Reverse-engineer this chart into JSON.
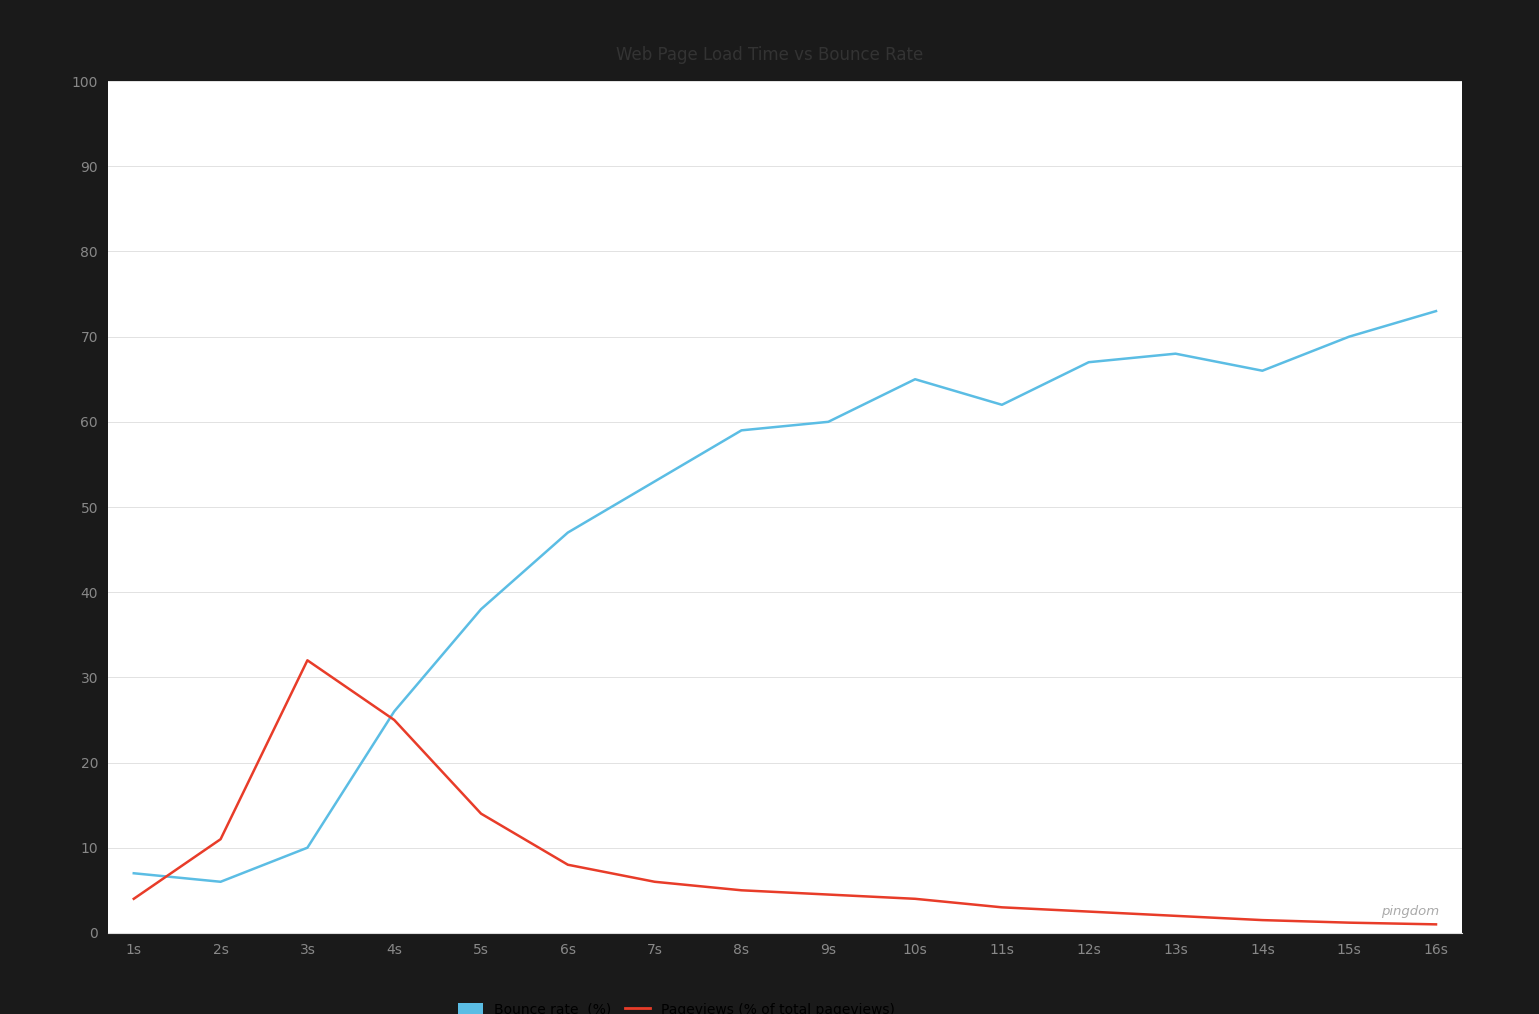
{
  "title": "Web Page Load Time vs Bounce Rate",
  "x_labels": [
    "1s",
    "2s",
    "3s",
    "4s",
    "5s",
    "6s",
    "7s",
    "8s",
    "9s",
    "10s",
    "11s",
    "12s",
    "13s",
    "14s",
    "15s",
    "16s"
  ],
  "x_values": [
    1,
    2,
    3,
    4,
    5,
    6,
    7,
    8,
    9,
    10,
    11,
    12,
    13,
    14,
    15,
    16
  ],
  "bounce_rate": [
    7,
    6,
    10,
    26,
    38,
    47,
    53,
    59,
    60,
    65,
    62,
    67,
    68,
    66,
    70,
    73
  ],
  "pageviews": [
    4,
    11,
    32,
    25,
    14,
    8,
    6,
    5,
    4.5,
    4,
    3,
    2.5,
    2,
    1.5,
    1.2,
    1
  ],
  "bounce_color": "#5BBDE4",
  "pageviews_color": "#E83C29",
  "ylim": [
    0,
    100
  ],
  "xlim": [
    1,
    16
  ],
  "y_ticks": [
    0,
    10,
    20,
    30,
    40,
    50,
    60,
    70,
    80,
    90,
    100
  ],
  "legend_bounce_label": "Bounce rate  (%)",
  "legend_pageviews_label": "Pageviews (% of total pageviews)",
  "outer_bg_color": "#1a1a1a",
  "card_bg_color": "#ffffff",
  "title_color": "#333333",
  "title_fontsize": 12,
  "tick_fontsize": 10,
  "legend_fontsize": 10,
  "watermark": "pingdom",
  "grid_color": "#dddddd",
  "tick_color": "#888888"
}
